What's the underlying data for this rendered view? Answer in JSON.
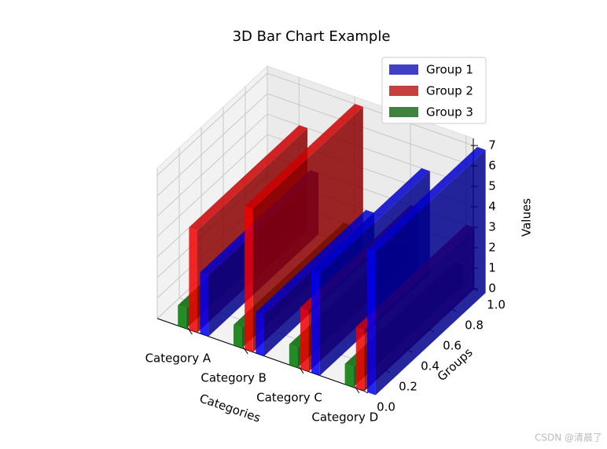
{
  "chart_data": {
    "type": "bar3d",
    "title": "3D Bar Chart Example",
    "categories": [
      "Category A",
      "Category B",
      "Category C",
      "Category D"
    ],
    "series": [
      {
        "name": "Group 1",
        "color": "#0000ff",
        "values": [
          3,
          2,
          5,
          7
        ]
      },
      {
        "name": "Group 2",
        "color": "#ff0000",
        "values": [
          5,
          7,
          3,
          3
        ]
      },
      {
        "name": "Group 3",
        "color": "#008000",
        "values": [
          1,
          1,
          1,
          1
        ]
      }
    ],
    "xlabel": "Categories",
    "ylabel": "Groups",
    "zlabel": "Values",
    "ylim": [
      0,
      1
    ],
    "yticks": [
      {
        "value": 0,
        "label": "0.0"
      },
      {
        "value": 0.2,
        "label": "0.2"
      },
      {
        "value": 0.4,
        "label": "0.4"
      },
      {
        "value": 0.6,
        "label": "0.6"
      },
      {
        "value": 0.8,
        "label": "0.8"
      },
      {
        "value": 1,
        "label": "1.0"
      }
    ],
    "zlim": [
      0,
      7.35
    ],
    "zticks": [
      0,
      1,
      2,
      3,
      4,
      5,
      6,
      7
    ],
    "legend": "upper right",
    "grid": true,
    "watermark": "CSDN @清晨了"
  }
}
